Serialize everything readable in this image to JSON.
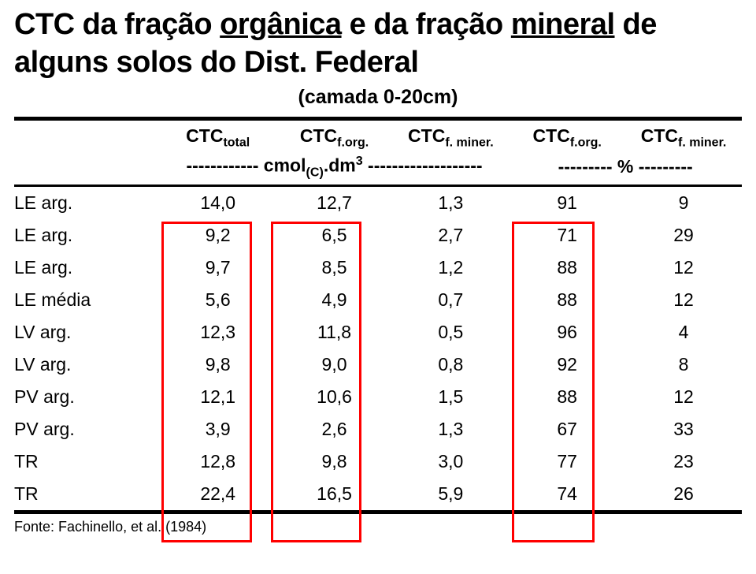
{
  "title_parts": {
    "p1": "CTC da fração ",
    "p2_underlined": "orgânica",
    "p3": " e da fração ",
    "p4_underlined": "mineral",
    "p5": " de alguns solos do Dist. Federal"
  },
  "subtitle": "(camada 0-20cm)",
  "headers": {
    "col1": "",
    "col2": {
      "main": "CTC",
      "sub": "total"
    },
    "col3": {
      "main": "CTC",
      "sub": "f.org."
    },
    "col4": {
      "main": "CTC",
      "sub": "f. miner."
    },
    "col5": {
      "main": "CTC",
      "sub": "f.org."
    },
    "col6": {
      "main": "CTC",
      "sub": "f. miner."
    }
  },
  "unit_row": {
    "left": "------------ cmol",
    "left_sub": "(C)",
    "left2": ".dm",
    "left_sup": "3",
    "left3": " -------------------",
    "right": "--------- % ---------"
  },
  "rows": [
    {
      "label": "LE arg.",
      "c2": "14,0",
      "c3": "12,7",
      "c4": "1,3",
      "c5": "91",
      "c6": "9"
    },
    {
      "label": "LE arg.",
      "c2": "9,2",
      "c3": "6,5",
      "c4": "2,7",
      "c5": "71",
      "c6": "29"
    },
    {
      "label": "LE arg.",
      "c2": "9,7",
      "c3": "8,5",
      "c4": "1,2",
      "c5": "88",
      "c6": "12"
    },
    {
      "label": "LE média",
      "c2": "5,6",
      "c3": "4,9",
      "c4": "0,7",
      "c5": "88",
      "c6": "12"
    },
    {
      "label": "LV arg.",
      "c2": "12,3",
      "c3": "11,8",
      "c4": "0,5",
      "c5": "96",
      "c6": "4"
    },
    {
      "label": "LV arg.",
      "c2": "9,8",
      "c3": "9,0",
      "c4": "0,8",
      "c5": "92",
      "c6": "8"
    },
    {
      "label": "PV arg.",
      "c2": "12,1",
      "c3": "10,6",
      "c4": "1,5",
      "c5": "88",
      "c6": "12"
    },
    {
      "label": "PV arg.",
      "c2": "3,9",
      "c3": "2,6",
      "c4": "1,3",
      "c5": "67",
      "c6": "33"
    },
    {
      "label": "TR",
      "c2": "12,8",
      "c3": "9,8",
      "c4": "3,0",
      "c5": "77",
      "c6": "23"
    },
    {
      "label": "TR",
      "c2": "22,4",
      "c3": "16,5",
      "c4": "5,9",
      "c5": "74",
      "c6": "26"
    }
  ],
  "footnote": "Fonte: Fachinello, et al. (1984)",
  "colors": {
    "text": "#000000",
    "background": "#ffffff",
    "highlight_border": "#ff0000"
  },
  "layout": {
    "highlight_columns": [
      "c2",
      "c3",
      "c5"
    ],
    "col_widths_pct": [
      20,
      16,
      16,
      16,
      16,
      16
    ]
  }
}
